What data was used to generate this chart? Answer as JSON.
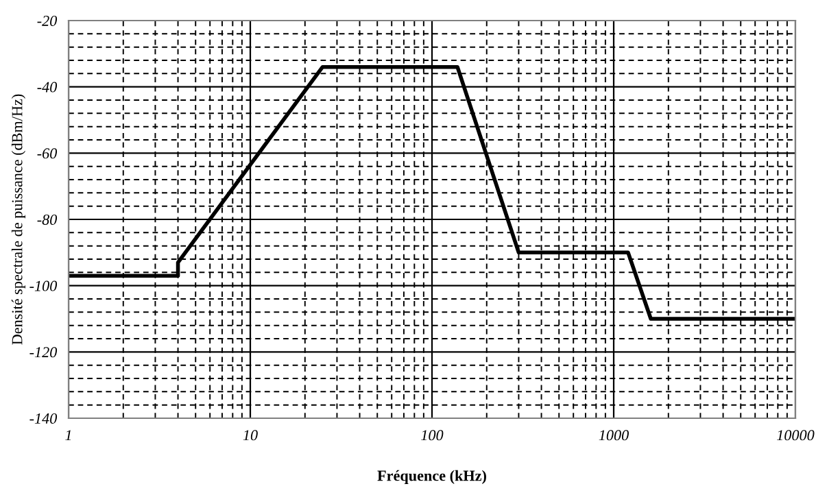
{
  "chart_data": {
    "type": "line",
    "xlabel": "Fréquence (kHz)",
    "ylabel": "Densité spectrale de puissance (dBm/Hz)",
    "log": "x",
    "xlim": [
      1,
      10000
    ],
    "xticks": [
      1,
      10,
      100,
      1000,
      10000
    ],
    "ylim": [
      -140,
      -20
    ],
    "yticks": [
      -140,
      -120,
      -100,
      -80,
      -60,
      -40,
      -20
    ],
    "grid": true,
    "marker": "none",
    "line_style": "solid",
    "series": [
      {
        "color": "#000000",
        "x": [
          1,
          4,
          4,
          25,
          138,
          300,
          1200,
          1600,
          10000
        ],
        "values": [
          -97,
          -97,
          -93,
          -34,
          -34,
          -90,
          -90,
          -110,
          -110
        ]
      }
    ]
  }
}
